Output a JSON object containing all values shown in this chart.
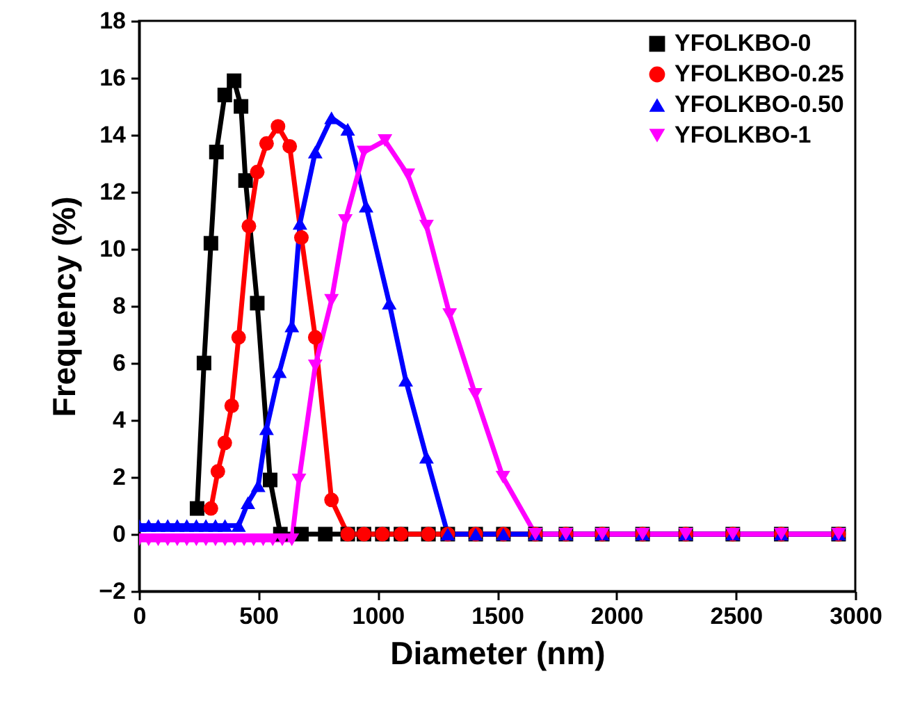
{
  "chart_data": {
    "type": "line",
    "xlabel": "Diameter (nm)",
    "ylabel": "Frequency (%)",
    "xlim": [
      0,
      3000
    ],
    "xticks": [
      0,
      500,
      1000,
      1500,
      2000,
      2500,
      3000
    ],
    "ylim": [
      -2,
      18
    ],
    "yticks": [
      -2,
      0,
      2,
      4,
      6,
      8,
      10,
      12,
      14,
      16,
      18
    ],
    "grid": false,
    "legend": "top right",
    "line_style": "solid",
    "series": [
      {
        "name": "YFOLKBO-0",
        "color": "#000000",
        "marker": "square",
        "x": [
          243,
          272,
          301,
          324,
          359,
          398,
          427,
          446,
          495,
          549,
          592,
          680,
          780,
          874,
          942,
          1019,
          1097,
          1212,
          1293,
          1410,
          1526,
          1660,
          1788,
          1940,
          2109,
          2290,
          2487,
          2690,
          2930
        ],
        "values": [
          0.9,
          6.0,
          10.2,
          13.4,
          15.4,
          15.9,
          15.0,
          12.4,
          8.1,
          1.9,
          0,
          0,
          0,
          0,
          0,
          0,
          0,
          0,
          0,
          0,
          0,
          0,
          0,
          0,
          0,
          0,
          0,
          0,
          0
        ]
      },
      {
        "name": "YFOLKBO-0.25",
        "color": "#ff0000",
        "marker": "circle",
        "x": [
          301,
          330,
          359,
          388,
          417,
          460,
          495,
          534,
          582,
          631,
          680,
          738,
          806,
          874,
          942,
          1019,
          1097,
          1212,
          1293,
          1410,
          1526,
          1660,
          1788,
          1940,
          2109,
          2290,
          2487,
          2690,
          2930
        ],
        "values": [
          0.9,
          2.2,
          3.2,
          4.5,
          6.9,
          10.8,
          12.7,
          13.7,
          14.3,
          13.6,
          10.4,
          6.9,
          1.2,
          0,
          0,
          0,
          0,
          0,
          0,
          0,
          0,
          0,
          0,
          0,
          0,
          0,
          0,
          0,
          0
        ]
      },
      {
        "name": "YFOLKBO-0.50",
        "color": "#0000ff",
        "marker": "triangle",
        "x": [
          0,
          40,
          80,
          120,
          160,
          200,
          240,
          280,
          320,
          360,
          417,
          456,
          499,
          534,
          588,
          640,
          674,
          738,
          806,
          874,
          951,
          1048,
          1117,
          1204,
          1293,
          1410,
          1526,
          1660,
          1788,
          1940,
          2109,
          2290,
          2487,
          2690,
          2930
        ],
        "values": [
          0.3,
          0.3,
          0.3,
          0.3,
          0.3,
          0.3,
          0.3,
          0.3,
          0.3,
          0.3,
          0.3,
          1.1,
          1.7,
          3.7,
          5.7,
          7.3,
          10.9,
          13.4,
          14.6,
          14.2,
          11.5,
          8.1,
          5.4,
          2.7,
          0,
          0,
          0,
          0,
          0,
          0,
          0,
          0,
          0,
          0,
          0
        ]
      },
      {
        "name": "YFOLKBO-1",
        "color": "#ff00ff",
        "marker": "triangle-down",
        "x": [
          0,
          40,
          80,
          120,
          160,
          200,
          240,
          280,
          320,
          360,
          400,
          440,
          480,
          520,
          560,
          600,
          640,
          670,
          738,
          806,
          864,
          942,
          1030,
          1126,
          1204,
          1301,
          1408,
          1524,
          1660,
          1788,
          1940,
          2109,
          2290,
          2487,
          2690,
          2930
        ],
        "values": [
          -0.2,
          -0.2,
          -0.2,
          -0.2,
          -0.2,
          -0.2,
          -0.2,
          -0.2,
          -0.2,
          -0.2,
          -0.2,
          -0.2,
          -0.2,
          -0.2,
          -0.2,
          -0.2,
          -0.2,
          1.9,
          5.9,
          8.2,
          11.0,
          13.4,
          13.8,
          12.6,
          10.8,
          7.7,
          4.9,
          2.0,
          0,
          0,
          0,
          0,
          0,
          0,
          0,
          0
        ]
      }
    ]
  }
}
